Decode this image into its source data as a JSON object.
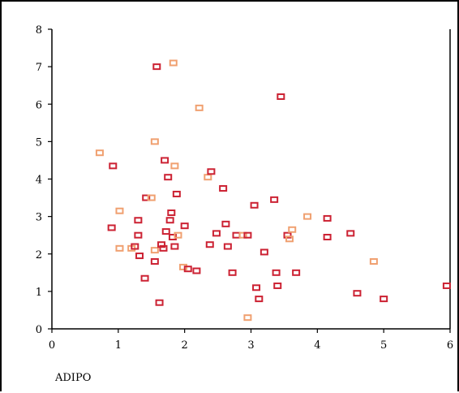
{
  "chart_data": {
    "type": "scatter",
    "title": "",
    "xlabel": "ADIPO",
    "ylabel": "",
    "xlim": [
      0,
      6
    ],
    "ylim": [
      0,
      8
    ],
    "x_ticks": [
      "0",
      "1",
      "2",
      "3",
      "4",
      "5",
      "6"
    ],
    "y_ticks": [
      "0",
      "1",
      "2",
      "3",
      "4",
      "5",
      "6",
      "7",
      "8"
    ],
    "grid": false,
    "colors": {
      "dark": "#cc2233",
      "light": "#f0a070"
    },
    "points": [
      {
        "x": 0.72,
        "y": 4.7,
        "c": "light"
      },
      {
        "x": 0.92,
        "y": 4.35,
        "c": "dark"
      },
      {
        "x": 0.9,
        "y": 2.7,
        "c": "dark"
      },
      {
        "x": 1.02,
        "y": 3.15,
        "c": "light"
      },
      {
        "x": 1.02,
        "y": 2.15,
        "c": "light"
      },
      {
        "x": 1.2,
        "y": 2.15,
        "c": "light"
      },
      {
        "x": 1.25,
        "y": 2.2,
        "c": "dark"
      },
      {
        "x": 1.3,
        "y": 2.9,
        "c": "dark"
      },
      {
        "x": 1.3,
        "y": 2.5,
        "c": "dark"
      },
      {
        "x": 1.32,
        "y": 1.95,
        "c": "dark"
      },
      {
        "x": 1.4,
        "y": 1.35,
        "c": "dark"
      },
      {
        "x": 1.42,
        "y": 3.5,
        "c": "dark"
      },
      {
        "x": 1.5,
        "y": 3.5,
        "c": "light"
      },
      {
        "x": 1.55,
        "y": 5.0,
        "c": "light"
      },
      {
        "x": 1.55,
        "y": 2.1,
        "c": "light"
      },
      {
        "x": 1.55,
        "y": 1.8,
        "c": "dark"
      },
      {
        "x": 1.58,
        "y": 7.0,
        "c": "dark"
      },
      {
        "x": 1.62,
        "y": 0.7,
        "c": "dark"
      },
      {
        "x": 1.65,
        "y": 2.25,
        "c": "dark"
      },
      {
        "x": 1.68,
        "y": 2.15,
        "c": "dark"
      },
      {
        "x": 1.7,
        "y": 4.5,
        "c": "dark"
      },
      {
        "x": 1.72,
        "y": 2.6,
        "c": "dark"
      },
      {
        "x": 1.75,
        "y": 4.05,
        "c": "dark"
      },
      {
        "x": 1.78,
        "y": 2.9,
        "c": "dark"
      },
      {
        "x": 1.8,
        "y": 3.1,
        "c": "dark"
      },
      {
        "x": 1.82,
        "y": 2.45,
        "c": "dark"
      },
      {
        "x": 1.83,
        "y": 7.1,
        "c": "light"
      },
      {
        "x": 1.85,
        "y": 4.35,
        "c": "light"
      },
      {
        "x": 1.85,
        "y": 2.2,
        "c": "dark"
      },
      {
        "x": 1.88,
        "y": 3.6,
        "c": "dark"
      },
      {
        "x": 1.9,
        "y": 2.5,
        "c": "light"
      },
      {
        "x": 1.98,
        "y": 1.65,
        "c": "light"
      },
      {
        "x": 2.0,
        "y": 2.75,
        "c": "dark"
      },
      {
        "x": 2.05,
        "y": 1.6,
        "c": "dark"
      },
      {
        "x": 2.18,
        "y": 1.55,
        "c": "dark"
      },
      {
        "x": 2.22,
        "y": 5.9,
        "c": "light"
      },
      {
        "x": 2.35,
        "y": 4.05,
        "c": "light"
      },
      {
        "x": 2.4,
        "y": 4.2,
        "c": "dark"
      },
      {
        "x": 2.38,
        "y": 2.25,
        "c": "dark"
      },
      {
        "x": 2.48,
        "y": 2.55,
        "c": "dark"
      },
      {
        "x": 2.58,
        "y": 3.75,
        "c": "dark"
      },
      {
        "x": 2.62,
        "y": 2.8,
        "c": "dark"
      },
      {
        "x": 2.65,
        "y": 2.2,
        "c": "dark"
      },
      {
        "x": 2.72,
        "y": 1.5,
        "c": "dark"
      },
      {
        "x": 2.78,
        "y": 2.5,
        "c": "dark"
      },
      {
        "x": 2.88,
        "y": 2.5,
        "c": "light"
      },
      {
        "x": 2.95,
        "y": 2.5,
        "c": "dark"
      },
      {
        "x": 2.95,
        "y": 0.3,
        "c": "light"
      },
      {
        "x": 3.05,
        "y": 3.3,
        "c": "dark"
      },
      {
        "x": 3.08,
        "y": 1.1,
        "c": "dark"
      },
      {
        "x": 3.12,
        "y": 0.8,
        "c": "dark"
      },
      {
        "x": 3.2,
        "y": 2.05,
        "c": "dark"
      },
      {
        "x": 3.35,
        "y": 3.45,
        "c": "dark"
      },
      {
        "x": 3.38,
        "y": 1.5,
        "c": "dark"
      },
      {
        "x": 3.4,
        "y": 1.15,
        "c": "dark"
      },
      {
        "x": 3.45,
        "y": 6.2,
        "c": "dark"
      },
      {
        "x": 3.55,
        "y": 2.5,
        "c": "dark"
      },
      {
        "x": 3.58,
        "y": 2.4,
        "c": "light"
      },
      {
        "x": 3.62,
        "y": 2.65,
        "c": "light"
      },
      {
        "x": 3.68,
        "y": 1.5,
        "c": "dark"
      },
      {
        "x": 3.85,
        "y": 3.0,
        "c": "light"
      },
      {
        "x": 4.15,
        "y": 2.95,
        "c": "dark"
      },
      {
        "x": 4.15,
        "y": 2.45,
        "c": "dark"
      },
      {
        "x": 4.5,
        "y": 2.55,
        "c": "dark"
      },
      {
        "x": 4.6,
        "y": 0.95,
        "c": "dark"
      },
      {
        "x": 4.85,
        "y": 1.8,
        "c": "light"
      },
      {
        "x": 5.0,
        "y": 0.8,
        "c": "dark"
      },
      {
        "x": 5.95,
        "y": 1.15,
        "c": "dark"
      }
    ]
  }
}
